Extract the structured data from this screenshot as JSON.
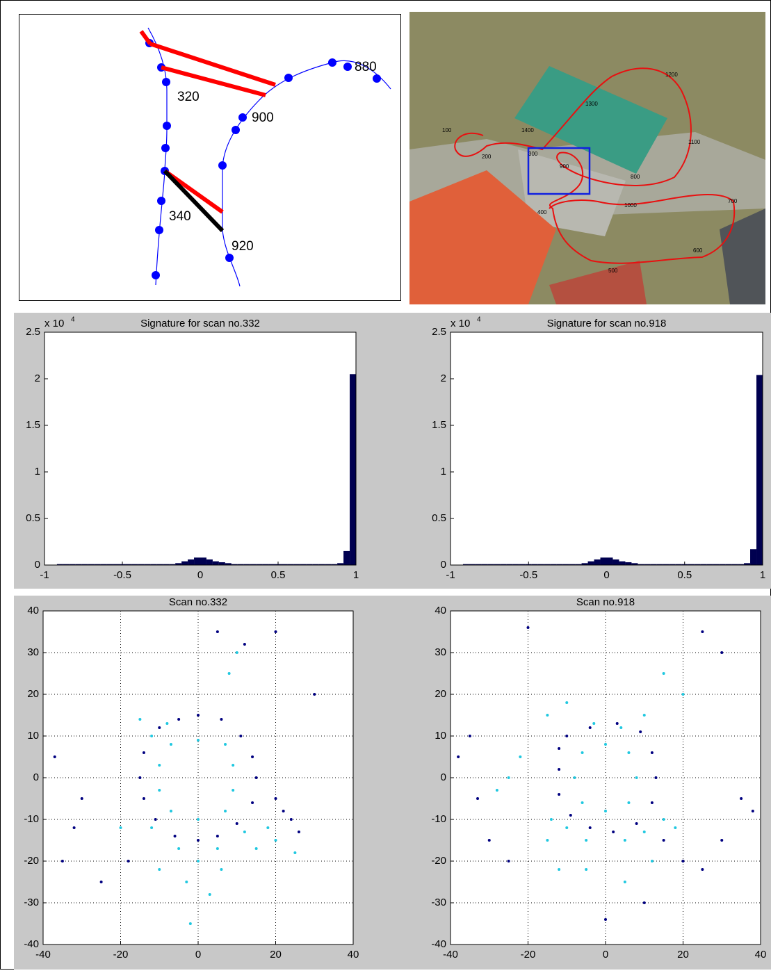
{
  "trajectory_diagram": {
    "labels": [
      "320",
      "340",
      "880",
      "900",
      "920"
    ]
  },
  "aerial_map": {
    "labels": [
      "100",
      "200",
      "300",
      "400",
      "500",
      "600",
      "700",
      "800",
      "900",
      "1000",
      "1100",
      "1200",
      "1300",
      "1400"
    ]
  },
  "chart_data": [
    {
      "type": "histogram",
      "title": "Signature for scan no.332",
      "y_multiplier": "x 10",
      "y_multiplier_exponent": "4",
      "color": "#000050",
      "bins": [
        -1,
        -0.96,
        -0.92,
        -0.88,
        -0.84,
        -0.8,
        -0.76,
        -0.72,
        -0.68,
        -0.64,
        -0.6,
        -0.56,
        -0.52,
        -0.48,
        -0.44,
        -0.4,
        -0.36,
        -0.32,
        -0.28,
        -0.24,
        -0.2,
        -0.16,
        -0.12,
        -0.08,
        -0.04,
        0,
        0.04,
        0.08,
        0.12,
        0.16,
        0.2,
        0.24,
        0.28,
        0.32,
        0.36,
        0.4,
        0.44,
        0.48,
        0.52,
        0.56,
        0.6,
        0.64,
        0.68,
        0.72,
        0.76,
        0.8,
        0.84,
        0.88,
        0.92,
        0.96,
        1
      ],
      "values": [
        0,
        0,
        0.01,
        0.01,
        0.01,
        0.01,
        0.01,
        0.01,
        0.01,
        0.01,
        0.01,
        0.01,
        0.01,
        0.01,
        0.01,
        0.01,
        0.01,
        0.01,
        0.01,
        0.01,
        0.01,
        0.02,
        0.04,
        0.06,
        0.08,
        0.08,
        0.06,
        0.04,
        0.03,
        0.02,
        0.01,
        0.01,
        0.01,
        0.01,
        0.01,
        0.01,
        0.01,
        0.01,
        0.01,
        0.01,
        0.01,
        0.01,
        0.01,
        0.01,
        0.01,
        0.01,
        0.01,
        0.02,
        0.15,
        2.05
      ],
      "xlim": [
        -1,
        1
      ],
      "xticks": [
        -1,
        -0.5,
        0,
        0.5,
        1
      ],
      "ylim": [
        0,
        2.5
      ],
      "yticks": [
        0,
        0.5,
        1,
        1.5,
        2,
        2.5
      ]
    },
    {
      "type": "histogram",
      "title": "Signature for scan no.918",
      "y_multiplier": "x 10",
      "y_multiplier_exponent": "4",
      "color": "#000050",
      "bins": [
        -1,
        -0.96,
        -0.92,
        -0.88,
        -0.84,
        -0.8,
        -0.76,
        -0.72,
        -0.68,
        -0.64,
        -0.6,
        -0.56,
        -0.52,
        -0.48,
        -0.44,
        -0.4,
        -0.36,
        -0.32,
        -0.28,
        -0.24,
        -0.2,
        -0.16,
        -0.12,
        -0.08,
        -0.04,
        0,
        0.04,
        0.08,
        0.12,
        0.16,
        0.2,
        0.24,
        0.28,
        0.32,
        0.36,
        0.4,
        0.44,
        0.48,
        0.52,
        0.56,
        0.6,
        0.64,
        0.68,
        0.72,
        0.76,
        0.8,
        0.84,
        0.88,
        0.92,
        0.96,
        1
      ],
      "values": [
        0,
        0,
        0.01,
        0.01,
        0.01,
        0.01,
        0.01,
        0.01,
        0.01,
        0.01,
        0.01,
        0.01,
        0.01,
        0.01,
        0.01,
        0.01,
        0.01,
        0.01,
        0.01,
        0.01,
        0.01,
        0.02,
        0.04,
        0.06,
        0.08,
        0.08,
        0.06,
        0.04,
        0.03,
        0.02,
        0.01,
        0.01,
        0.01,
        0.01,
        0.01,
        0.01,
        0.01,
        0.01,
        0.01,
        0.01,
        0.01,
        0.01,
        0.01,
        0.01,
        0.01,
        0.01,
        0.01,
        0.02,
        0.17,
        2.04
      ],
      "xlim": [
        -1,
        1
      ],
      "xticks": [
        -1,
        -0.5,
        0,
        0.5,
        1
      ],
      "ylim": [
        0,
        2.5
      ],
      "yticks": [
        0,
        0.5,
        1,
        1.5,
        2,
        2.5
      ]
    },
    {
      "type": "scatter",
      "title": "Scan no.332",
      "grid": true,
      "xlim": [
        -40,
        40
      ],
      "xticks": [
        -40,
        -20,
        0,
        20,
        40
      ],
      "ylim": [
        -40,
        40
      ],
      "yticks": [
        -40,
        -30,
        -20,
        -10,
        0,
        10,
        20,
        30,
        40
      ],
      "series": [
        {
          "color": "#000080",
          "x": [
            -10,
            -5,
            0,
            6,
            11,
            14,
            15,
            14,
            10,
            5,
            0,
            -6,
            -11,
            -14,
            -15,
            -14,
            20,
            22,
            24,
            26,
            -30,
            -32,
            -35,
            -25,
            -18,
            5,
            12,
            20,
            -37,
            30
          ],
          "values": [
            12,
            14,
            15,
            14,
            10,
            5,
            0,
            -6,
            -11,
            -14,
            -15,
            -14,
            -10,
            -5,
            0,
            6,
            -5,
            -8,
            -10,
            -13,
            -5,
            -12,
            -20,
            -25,
            -20,
            35,
            32,
            35,
            5,
            20
          ]
        },
        {
          "color": "#20c8e0",
          "x": [
            -7,
            0,
            7,
            9,
            9,
            7,
            0,
            -7,
            -10,
            -10,
            -12,
            -5,
            5,
            12,
            15,
            20,
            25,
            -8,
            -3,
            3,
            -10,
            10,
            8,
            -15,
            -12,
            18,
            0,
            -20,
            6,
            -2
          ],
          "values": [
            8,
            9,
            8,
            3,
            -3,
            -8,
            -10,
            -8,
            -3,
            3,
            -12,
            -17,
            -17,
            -13,
            -17,
            -15,
            -18,
            13,
            -25,
            -28,
            -22,
            30,
            25,
            14,
            10,
            -12,
            -20,
            -12,
            -22,
            -35
          ]
        }
      ]
    },
    {
      "type": "scatter",
      "title": "Scan no.918",
      "grid": true,
      "xlim": [
        -40,
        40
      ],
      "xticks": [
        -40,
        -20,
        0,
        20,
        40
      ],
      "ylim": [
        -40,
        40
      ],
      "yticks": [
        -40,
        -30,
        -20,
        -10,
        0,
        10,
        20,
        30,
        40
      ],
      "series": [
        {
          "color": "#000080",
          "x": [
            -10,
            -4,
            3,
            9,
            12,
            13,
            12,
            8,
            2,
            -4,
            -9,
            -12,
            -12,
            -12,
            -35,
            -38,
            -33,
            -30,
            -25,
            15,
            20,
            25,
            30,
            35,
            38,
            25,
            30,
            -20,
            0,
            10
          ],
          "values": [
            10,
            12,
            13,
            11,
            6,
            0,
            -6,
            -11,
            -13,
            -12,
            -9,
            -4,
            2,
            7,
            10,
            5,
            -5,
            -15,
            -20,
            -15,
            -20,
            -22,
            -15,
            -5,
            -8,
            35,
            30,
            36,
            -34,
            -30
          ]
        },
        {
          "color": "#20c8e0",
          "x": [
            -6,
            0,
            6,
            8,
            6,
            0,
            -6,
            -8,
            -3,
            4,
            -10,
            -5,
            5,
            10,
            -14,
            -15,
            15,
            18,
            -12,
            -5,
            5,
            12,
            -22,
            -25,
            -28,
            -15,
            -10,
            10,
            20,
            15
          ],
          "values": [
            6,
            8,
            6,
            0,
            -6,
            -8,
            -6,
            0,
            13,
            12,
            -12,
            -15,
            -15,
            -13,
            -10,
            -15,
            -10,
            -12,
            -22,
            -22,
            -25,
            -20,
            5,
            0,
            -3,
            15,
            18,
            15,
            20,
            25
          ]
        }
      ]
    }
  ]
}
